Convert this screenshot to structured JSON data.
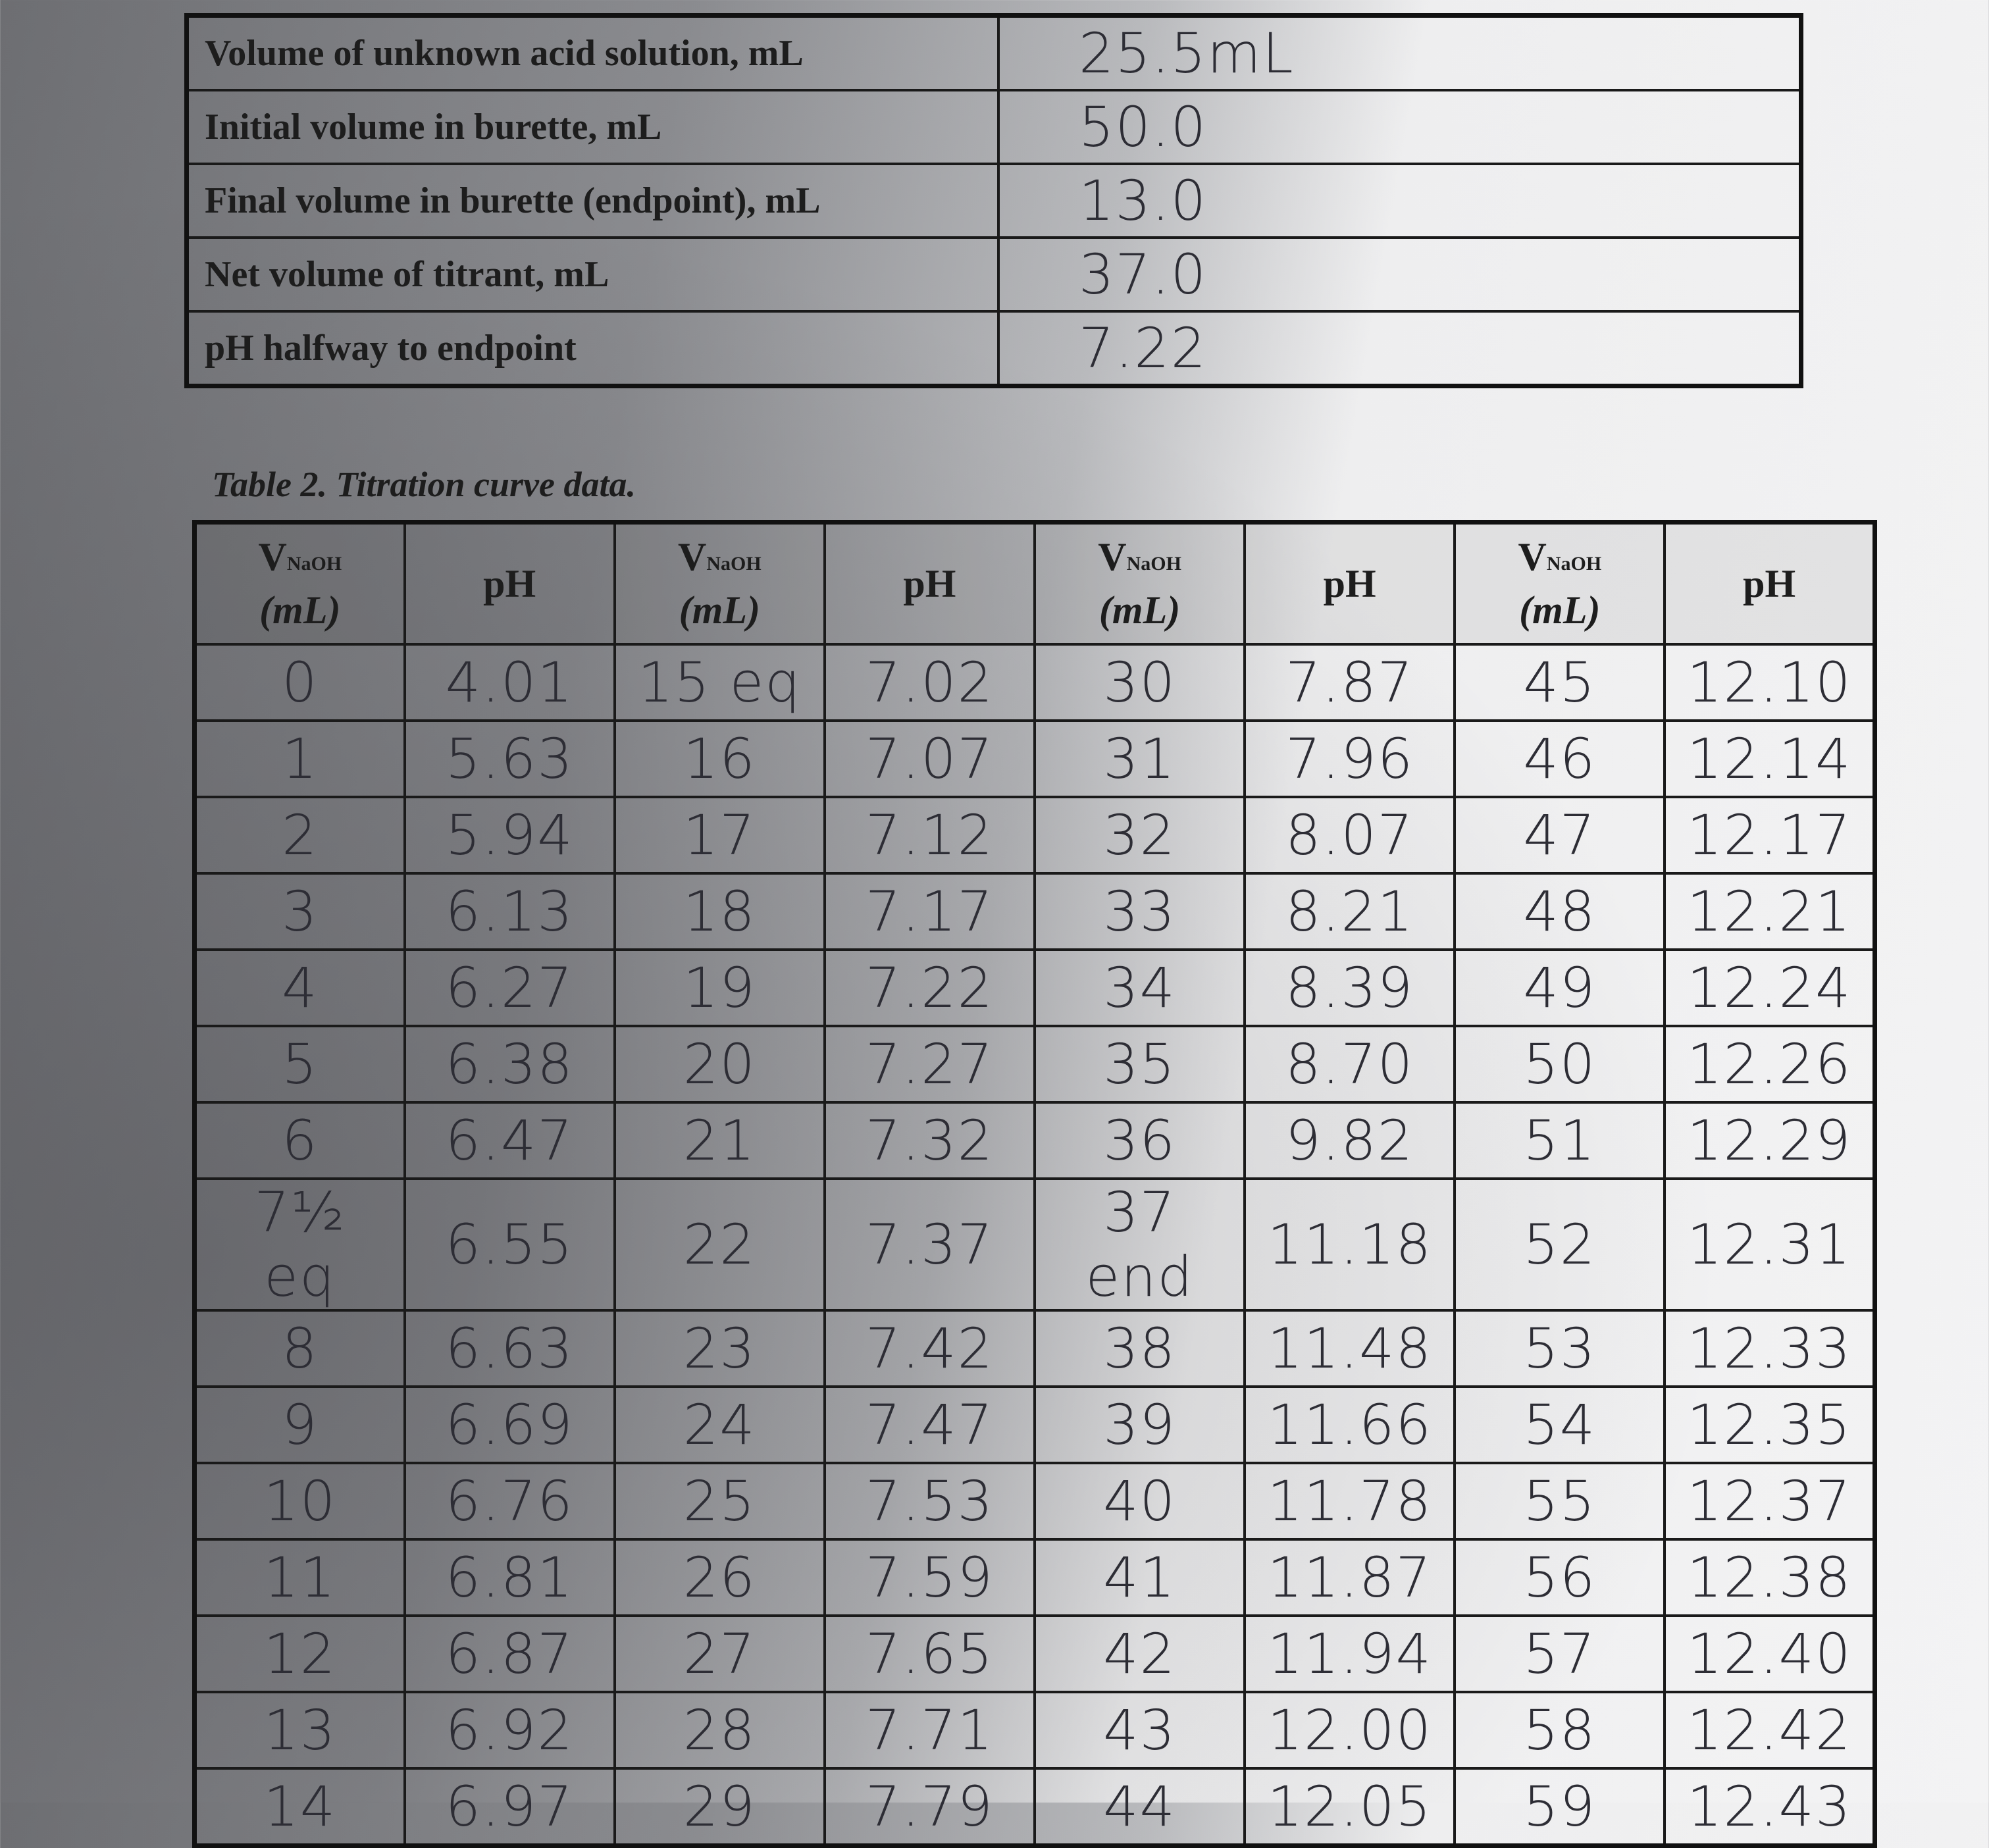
{
  "table1": {
    "rows": [
      [
        "Volume of unknown acid solution, mL",
        "25.5mL"
      ],
      [
        "Initial volume in burette, mL",
        "50.0"
      ],
      [
        "Final volume in burette (endpoint), mL",
        "13.0"
      ],
      [
        "Net volume of titrant, mL",
        "37.0"
      ],
      [
        "pH halfway to endpoint",
        "7.22"
      ]
    ]
  },
  "table2": {
    "caption": "Table 2. Titration curve data.",
    "volume_header": {
      "symbol": "V",
      "subscript": "NaOH",
      "unit": "(mL)"
    },
    "ph_header": "pH",
    "rows": [
      [
        "0",
        "4.01",
        "15 eq",
        "7.02",
        "30",
        "7.87",
        "45",
        "12.10"
      ],
      [
        "1",
        "5.63",
        "16",
        "7.07",
        "31",
        "7.96",
        "46",
        "12.14"
      ],
      [
        "2",
        "5.94",
        "17",
        "7.12",
        "32",
        "8.07",
        "47",
        "12.17"
      ],
      [
        "3",
        "6.13",
        "18",
        "7.17",
        "33",
        "8.21",
        "48",
        "12.21"
      ],
      [
        "4",
        "6.27",
        "19",
        "7.22",
        "34",
        "8.39",
        "49",
        "12.24"
      ],
      [
        "5",
        "6.38",
        "20",
        "7.27",
        "35",
        "8.70",
        "50",
        "12.26"
      ],
      [
        "6",
        "6.47",
        "21",
        "7.32",
        "36",
        "9.82",
        "51",
        "12.29"
      ],
      [
        "7½ eq",
        "6.55",
        "22",
        "7.37",
        "37 end",
        "11.18",
        "52",
        "12.31"
      ],
      [
        "8",
        "6.63",
        "23",
        "7.42",
        "38",
        "11.48",
        "53",
        "12.33"
      ],
      [
        "9",
        "6.69",
        "24",
        "7.47",
        "39",
        "11.66",
        "54",
        "12.35"
      ],
      [
        "10",
        "6.76",
        "25",
        "7.53",
        "40",
        "11.78",
        "55",
        "12.37"
      ],
      [
        "11",
        "6.81",
        "26",
        "7.59",
        "41",
        "11.87",
        "56",
        "12.38"
      ],
      [
        "12",
        "6.87",
        "27",
        "7.65",
        "42",
        "11.94",
        "57",
        "12.40"
      ],
      [
        "13",
        "6.92",
        "28",
        "7.71",
        "43",
        "12.00",
        "58",
        "12.42"
      ],
      [
        "14",
        "6.97",
        "29",
        "7.79",
        "44",
        "12.05",
        "59",
        "12.43"
      ]
    ]
  }
}
